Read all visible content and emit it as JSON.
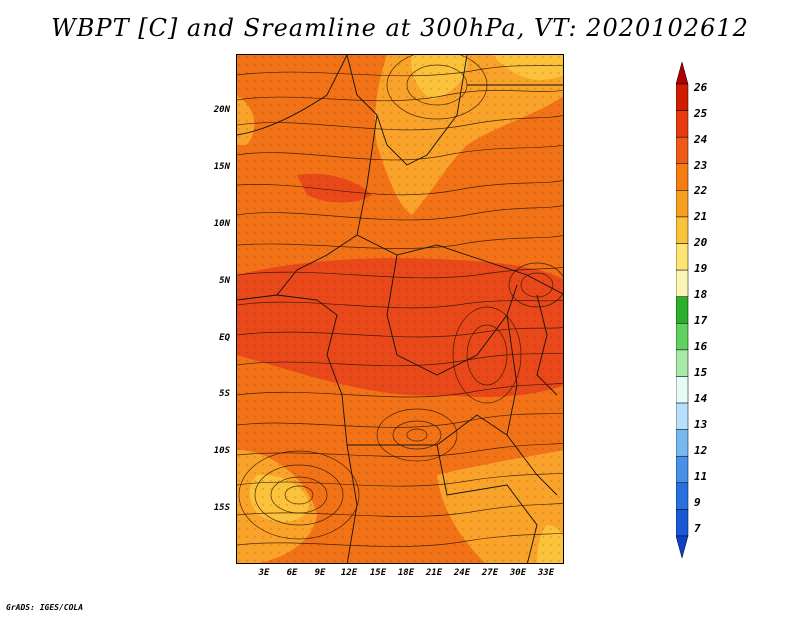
{
  "title": "WBPT [C] and Sreamline at 300hPa, VT: 2020102612",
  "credit": "GrADS: IGES/COLA",
  "map": {
    "lat_labels": [
      "20N",
      "15N",
      "10N",
      "5N",
      "EQ",
      "5S",
      "10S",
      "15S"
    ],
    "lon_labels": [
      "3E",
      "6E",
      "9E",
      "12E",
      "15E",
      "18E",
      "21E",
      "24E",
      "27E",
      "30E",
      "33E"
    ],
    "background_color": "#f06a1a"
  },
  "colorbar": {
    "labels": [
      "26",
      "25",
      "24",
      "23",
      "22",
      "21",
      "20",
      "19",
      "18",
      "17",
      "16",
      "15",
      "14",
      "13",
      "12",
      "11",
      "9",
      "7"
    ],
    "colors": [
      "#b00000",
      "#d01c00",
      "#e83a10",
      "#f05a18",
      "#f57d14",
      "#f7a020",
      "#fbc23c",
      "#fde474",
      "#fbf6b6",
      "#2cb02c",
      "#60d060",
      "#a8e8a8",
      "#e6faf6",
      "#b8e0fa",
      "#78b8f0",
      "#4890e8",
      "#2870e0",
      "#1a58d8",
      "#1040c8"
    ]
  }
}
